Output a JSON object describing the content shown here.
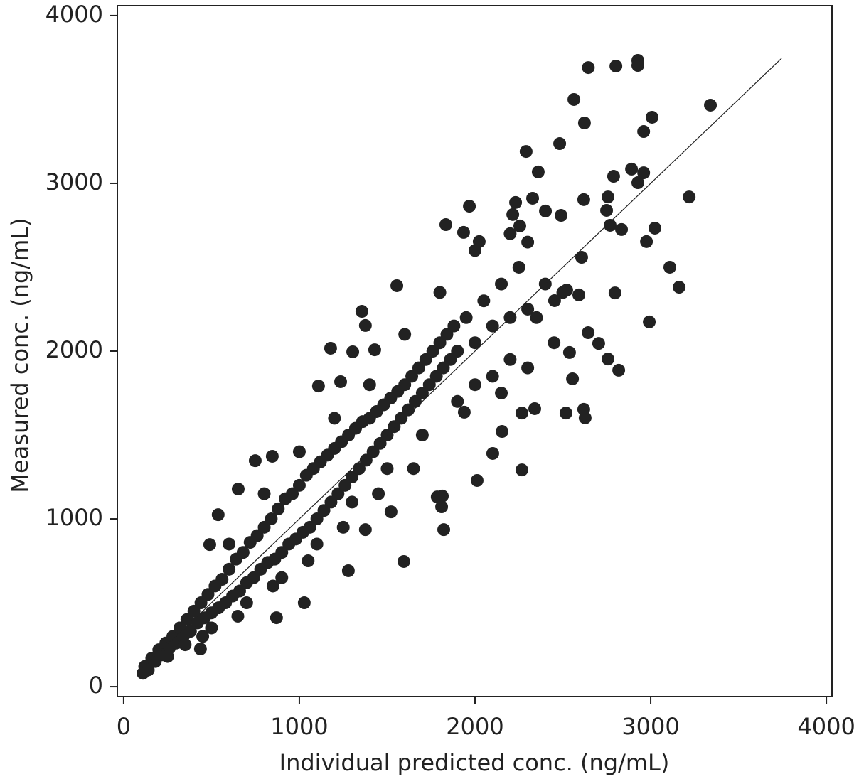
{
  "chart_data": {
    "type": "scatter",
    "x_label": "Individual predicted conc. (ng/mL)",
    "y_label": "Measured conc. (ng/mL)",
    "color": "#222222",
    "xlim": [
      -36,
      4032
    ],
    "ylim": [
      -59,
      4059
    ],
    "xticks": [
      0,
      1000,
      2000,
      3000,
      4000
    ],
    "yticks": [
      0,
      1000,
      2000,
      3000,
      4000
    ],
    "grid": false,
    "identity_line": {
      "x": [
        80,
        3745
      ],
      "y": [
        80,
        3745
      ]
    },
    "x": [
      2645,
      2802,
      2927,
      2927,
      3340,
      2563,
      2623,
      3008,
      2960,
      2291,
      2482,
      2360,
      2789,
      2891,
      2960,
      2927,
      3219,
      2619,
      2757,
      2328,
      2231,
      1968,
      2490,
      2401,
      2749,
      2215,
      2255,
      1834,
      2769,
      2834,
      3024,
      2976,
      1935,
      2024,
      2607,
      3109,
      3162,
      2797,
      2992,
      2453,
      2522,
      2591,
      1555,
      1356,
      1376,
      1178,
      1304,
      1429,
      2644,
      2704,
      2757,
      2818,
      2538,
      2555,
      2619,
      2627,
      2518,
      2340,
      2267,
      2154,
      2267,
      2101,
      2012,
      1814,
      1822,
      1595,
      1028,
      870,
      437,
      490,
      538,
      652,
      749,
      846,
      1109,
      1235,
      1939,
      1785,
      1810,
      1522,
      1376,
      1279,
      110,
      120,
      140,
      160,
      180,
      200,
      220,
      240,
      260,
      280,
      300,
      320,
      340,
      360,
      380,
      400,
      420,
      440,
      460,
      480,
      500,
      520,
      540,
      560,
      580,
      600,
      620,
      640,
      660,
      680,
      700,
      720,
      740,
      760,
      780,
      800,
      820,
      840,
      860,
      880,
      900,
      920,
      940,
      960,
      980,
      1000,
      1020,
      1040,
      1060,
      1080,
      1100,
      1120,
      1140,
      1160,
      1180,
      1200,
      1220,
      1240,
      1260,
      1280,
      1300,
      1320,
      1340,
      1360,
      1380,
      1400,
      1420,
      1440,
      1460,
      1480,
      1500,
      1520,
      1540,
      1560,
      1580,
      1600,
      1620,
      1640,
      1660,
      1680,
      1700,
      1720,
      1740,
      1760,
      1780,
      1800,
      1820,
      1840,
      1860,
      1880,
      1900,
      1950,
      2000,
      2050,
      2100,
      2150,
      2200,
      2250,
      2300,
      1900,
      2000,
      2100,
      2200,
      1700,
      1500,
      1300,
      1100,
      900,
      700,
      500,
      1200,
      1000,
      800,
      600,
      1400,
      1600,
      1800,
      2000,
      2200,
      2300,
      2400,
      2500,
      2350,
      2450,
      2300,
      2150,
      1650,
      1450,
      1250,
      1050,
      850,
      650,
      450,
      350,
      250
    ],
    "values": [
      3690,
      3699,
      3733,
      3703,
      3466,
      3500,
      3360,
      3394,
      3309,
      3190,
      3237,
      3068,
      3042,
      3085,
      3063,
      3004,
      2919,
      2903,
      2919,
      2911,
      2886,
      2864,
      2809,
      2835,
      2839,
      2814,
      2746,
      2754,
      2750,
      2725,
      2733,
      2653,
      2708,
      2653,
      2559,
      2500,
      2381,
      2347,
      2174,
      2301,
      2364,
      2335,
      2390,
      2237,
      2153,
      2017,
      1996,
      2008,
      2110,
      2046,
      1953,
      1886,
      1992,
      1835,
      1653,
      1602,
      1631,
      1657,
      1631,
      1521,
      1292,
      1390,
      1229,
      1136,
      936,
      746,
      500,
      411,
      225,
      847,
      1025,
      1178,
      1347,
      1373,
      1792,
      1818,
      1636,
      1131,
      1072,
      1042,
      936,
      691,
      80,
      120,
      100,
      170,
      150,
      220,
      190,
      260,
      230,
      300,
      260,
      350,
      300,
      400,
      330,
      450,
      380,
      500,
      410,
      550,
      440,
      600,
      470,
      640,
      500,
      700,
      540,
      760,
      570,
      800,
      620,
      860,
      650,
      900,
      700,
      950,
      740,
      1000,
      760,
      1060,
      800,
      1120,
      850,
      1150,
      880,
      1200,
      920,
      1260,
      950,
      1300,
      1000,
      1340,
      1050,
      1380,
      1100,
      1420,
      1150,
      1460,
      1200,
      1500,
      1250,
      1540,
      1300,
      1580,
      1350,
      1600,
      1400,
      1640,
      1450,
      1680,
      1500,
      1720,
      1550,
      1760,
      1600,
      1800,
      1650,
      1850,
      1700,
      1900,
      1750,
      1950,
      1800,
      2000,
      1850,
      2050,
      1900,
      2100,
      1950,
      2150,
      2000,
      2200,
      2050,
      2300,
      2150,
      2400,
      2200,
      2500,
      2250,
      1700,
      1800,
      1850,
      1950,
      1500,
      1300,
      1100,
      850,
      650,
      500,
      350,
      1600,
      1400,
      1150,
      850,
      1800,
      2100,
      2350,
      2600,
      2700,
      2650,
      2400,
      2350,
      2200,
      2050,
      1900,
      1750,
      1300,
      1150,
      950,
      750,
      600,
      420,
      300,
      250,
      180
    ]
  }
}
